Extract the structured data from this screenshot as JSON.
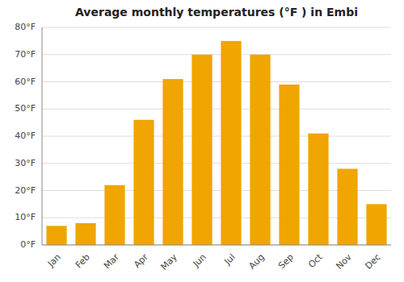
{
  "chart_data": {
    "type": "bar",
    "title": "Average monthly temperatures (°F ) in Embi",
    "categories": [
      "Jan",
      "Feb",
      "Mar",
      "Apr",
      "May",
      "Jun",
      "Jul",
      "Aug",
      "Sep",
      "Oct",
      "Nov",
      "Dec"
    ],
    "values": [
      7,
      8,
      22,
      46,
      61,
      70,
      75,
      70,
      59,
      41,
      28,
      15
    ],
    "color": "#F0A500",
    "ylim": [
      0,
      80
    ],
    "yticks": [
      {
        "value": 0,
        "label": "0°F"
      },
      {
        "value": 10,
        "label": "10°F"
      },
      {
        "value": 20,
        "label": "20°F"
      },
      {
        "value": 30,
        "label": "30°F"
      },
      {
        "value": 40,
        "label": "40°F"
      },
      {
        "value": 50,
        "label": "50°F"
      },
      {
        "value": 60,
        "label": "60°F"
      },
      {
        "value": 70,
        "label": "70°F"
      },
      {
        "value": 80,
        "label": "80°F"
      }
    ],
    "grid": true
  }
}
